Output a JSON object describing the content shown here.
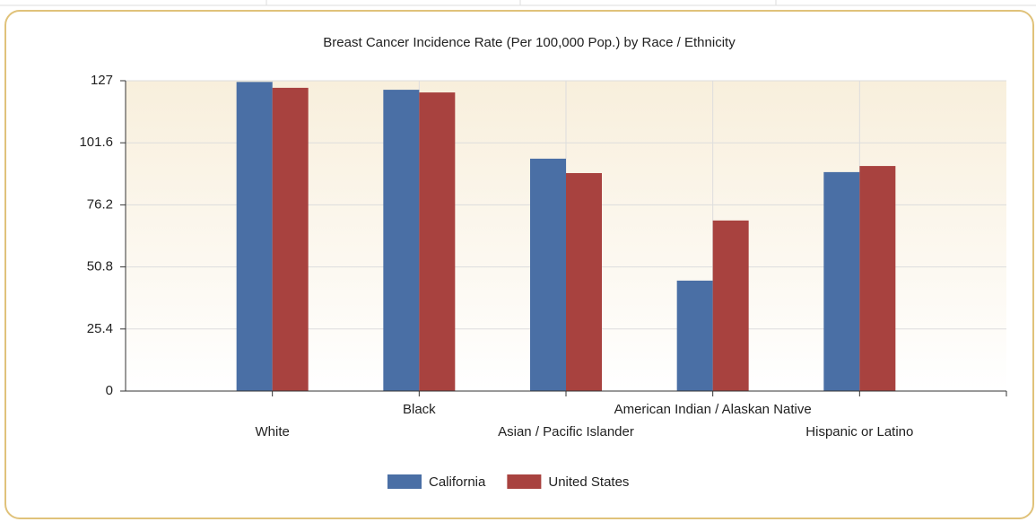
{
  "chart_data": {
    "type": "bar",
    "title": "Breast Cancer Incidence Rate (Per 100,000 Pop.) by Race / Ethnicity",
    "categories": [
      "White",
      "Black",
      "Asian / Pacific Islander",
      "American Indian / Alaskan Native",
      "Hispanic or Latino"
    ],
    "series": [
      {
        "name": "California",
        "color": "#4a6fa5",
        "values": [
          126.5,
          123.3,
          95.1,
          45.2,
          89.6
        ]
      },
      {
        "name": "United States",
        "color": "#a8423f",
        "values": [
          124.1,
          122.2,
          89.2,
          69.8,
          92.1
        ]
      }
    ],
    "ylim": [
      0,
      127
    ],
    "yticks": [
      0,
      25.4,
      50.8,
      76.2,
      101.6,
      127
    ],
    "grid": true,
    "legend": "bottom"
  }
}
